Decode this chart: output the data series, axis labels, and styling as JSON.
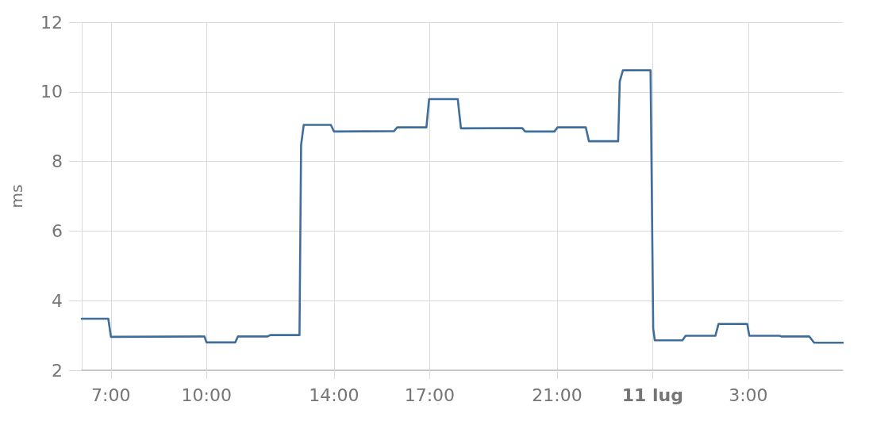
{
  "chart_data": {
    "type": "line",
    "ylabel": "ms",
    "x": [
      "--07-10T06:05",
      "--07-10T06:55",
      "--07-10T07:00",
      "--07-10T09:56",
      "--07-10T10:00",
      "--07-10T10:54",
      "--07-10T10:59",
      "--07-10T11:55",
      "--07-10T12:00",
      "--07-10T12:55",
      "--07-10T12:58",
      "--07-10T13:03",
      "--07-10T13:54",
      "--07-10T14:00",
      "--07-10T15:53",
      "--07-10T15:59",
      "--07-10T16:54",
      "--07-10T16:59",
      "--07-10T17:53",
      "--07-10T17:59",
      "--07-10T19:54",
      "--07-10T20:00",
      "--07-10T20:55",
      "--07-10T21:01",
      "--07-10T21:54",
      "--07-10T22:00",
      "--07-10T22:55",
      "--07-10T22:58",
      "--07-10T23:04",
      "--07-10T23:56",
      "--07-11T00:01",
      "--07-11T00:04",
      "--07-11T00:56",
      "--07-11T01:02",
      "--07-11T01:58",
      "--07-11T02:04",
      "--07-11T02:58",
      "--07-11T03:02",
      "--07-11T03:59",
      "--07-11T04:02",
      "--07-11T04:55",
      "--07-11T05:04",
      "--07-11T05:58"
    ],
    "values": [
      3.48,
      3.48,
      2.96,
      2.97,
      2.8,
      2.8,
      2.97,
      2.97,
      3.01,
      3.01,
      8.47,
      9.05,
      9.05,
      8.86,
      8.87,
      8.98,
      8.98,
      9.79,
      9.79,
      8.95,
      8.96,
      8.86,
      8.86,
      8.98,
      8.98,
      8.58,
      8.58,
      10.3,
      10.62,
      10.62,
      3.2,
      2.86,
      2.86,
      2.99,
      2.99,
      3.33,
      3.33,
      2.99,
      2.99,
      2.97,
      2.97,
      2.79,
      2.79
    ],
    "color": "#3f6e9c",
    "xlim": [
      "--07-10T06:05",
      "--07-11T05:58"
    ],
    "xticks": [
      {
        "value": "--07-10T07:00",
        "label": "7:00"
      },
      {
        "value": "--07-10T10:00",
        "label": "10:00"
      },
      {
        "value": "--07-10T14:00",
        "label": "14:00"
      },
      {
        "value": "--07-10T17:00",
        "label": "17:00"
      },
      {
        "value": "--07-10T21:00",
        "label": "21:00"
      },
      {
        "value": "--07-11T00:00",
        "label": "11 lug"
      },
      {
        "value": "--07-11T03:00",
        "label": "3:00"
      }
    ],
    "ylim": [
      2,
      12
    ],
    "yticks": [
      2,
      4,
      6,
      8,
      10,
      12
    ],
    "grid": true,
    "marker": "none",
    "line_style": "solid"
  }
}
